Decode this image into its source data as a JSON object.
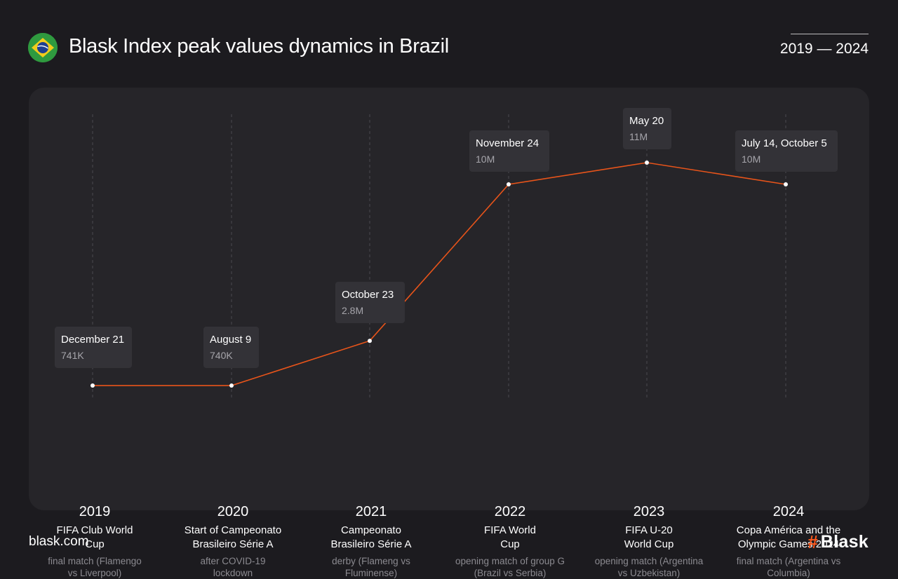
{
  "header": {
    "title": "Blask Index peak values dynamics in Brazil",
    "period": "2019 — 2024",
    "flag_icon": "brazil-flag-icon"
  },
  "footer": {
    "site": "blask.com",
    "brand_hash": "#",
    "brand": "Blask"
  },
  "colors": {
    "background": "#1c1b1f",
    "panel": "#262529",
    "line": "#e8541a",
    "tooltip": "#333237"
  },
  "chart_data": {
    "type": "line",
    "x": [
      "2019",
      "2020",
      "2021",
      "2022",
      "2023",
      "2024"
    ],
    "values": [
      741000,
      740000,
      2800000,
      10000000,
      11000000,
      10000000
    ],
    "ylim": [
      0,
      12000000
    ],
    "grid": "vertical dashed lines per year",
    "points": [
      {
        "year": "2019",
        "date": "December 21",
        "value_label": "741K",
        "event": "FIFA Club World Cup",
        "note": "final match (Flamengo vs Liverpool)"
      },
      {
        "year": "2020",
        "date": "August 9",
        "value_label": "740K",
        "event": "Start of Campeonato Brasileiro Série A",
        "note": "after COVID-19 lockdown"
      },
      {
        "year": "2021",
        "date": "October 23",
        "value_label": "2.8M",
        "event": "Campeonato Brasileiro Série A",
        "note": "derby (Flameng vs Fluminense)"
      },
      {
        "year": "2022",
        "date": "November 24",
        "value_label": "10M",
        "event": "FIFA World Cup",
        "note": "opening match of group G (Brazil vs Serbia)"
      },
      {
        "year": "2023",
        "date": "May 20",
        "value_label": "11M",
        "event": "FIFA U-20 World Cup",
        "note": "opening match (Argentina vs Uzbekistan)"
      },
      {
        "year": "2024",
        "date": "July 14, October 5",
        "value_label": "10M",
        "event": "Copa América and the Olympic Games 2024",
        "note": "final match (Argentina vs Columbia)"
      }
    ]
  }
}
